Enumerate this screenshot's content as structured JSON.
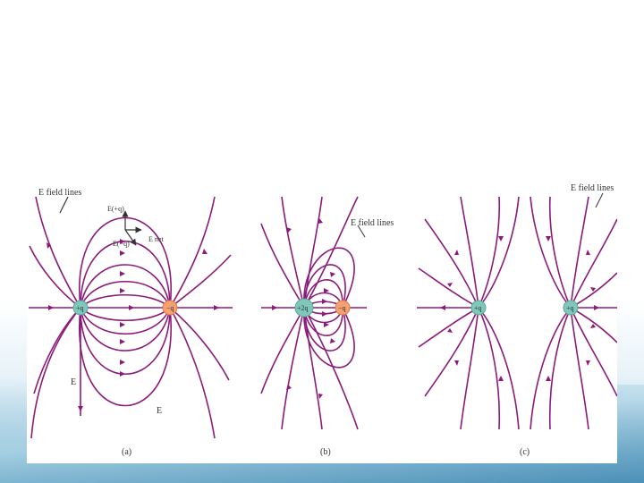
{
  "panel_a": {
    "field_lines_label": "E field lines",
    "charge_left": "+q",
    "charge_right": "−q",
    "vec_plus": "E(+q)",
    "vec_minus": "E(−q)",
    "vec_net": "E net",
    "vec_e1": "E",
    "vec_e2": "E",
    "caption": "(a)"
  },
  "panel_b": {
    "field_lines_label": "E field lines",
    "charge_left": "+2q",
    "charge_right": "−q",
    "caption": "(b)"
  },
  "panel_c": {
    "field_lines_label": "E field lines",
    "charge_left": "+q",
    "charge_right": "+q",
    "caption": "(c)"
  },
  "colors": {
    "field_line": "#8b1a7a",
    "positive_charge": "#7fc7bb",
    "negative_charge": "#f4a070",
    "background_bottom": "#7fb8d4"
  }
}
